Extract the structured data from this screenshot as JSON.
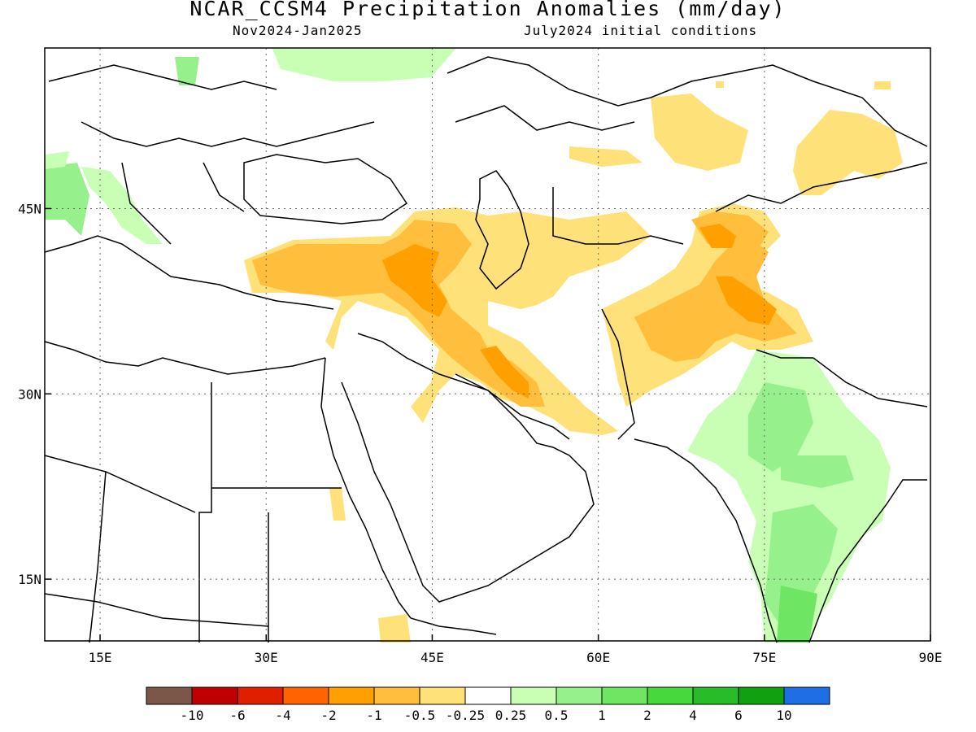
{
  "header": {
    "title": "NCAR_CCSM4 Precipitation Anomalies (mm/day)",
    "period": "Nov2024-Jan2025",
    "init": "July2024 initial conditions"
  },
  "map": {
    "lon_range": [
      10,
      90
    ],
    "lat_range": [
      10,
      58
    ],
    "lat_ticks": [
      {
        "value": 45,
        "label": "45N"
      },
      {
        "value": 30,
        "label": "30N"
      },
      {
        "value": 15,
        "label": "15N"
      }
    ],
    "lon_ticks": [
      {
        "value": 15,
        "label": "15E"
      },
      {
        "value": 30,
        "label": "30E"
      },
      {
        "value": 45,
        "label": "45E"
      },
      {
        "value": 60,
        "label": "60E"
      },
      {
        "value": 75,
        "label": "75E"
      },
      {
        "value": 90,
        "label": "90E"
      }
    ],
    "grid": true
  },
  "colorbar": {
    "colors": [
      "#7a5746",
      "#c00000",
      "#e01e00",
      "#ff6400",
      "#ffa000",
      "#ffbe3c",
      "#ffe17a",
      "#ffffff",
      "#c8ffb4",
      "#96f08c",
      "#6ee664",
      "#46d83c",
      "#28bc28",
      "#10a010",
      "#1e6ee6"
    ],
    "labels": [
      "-10",
      "-6",
      "-4",
      "-2",
      "-1",
      "-0.5",
      "-0.25",
      "0.25",
      "0.5",
      "1",
      "2",
      "4",
      "6",
      "10"
    ]
  }
}
